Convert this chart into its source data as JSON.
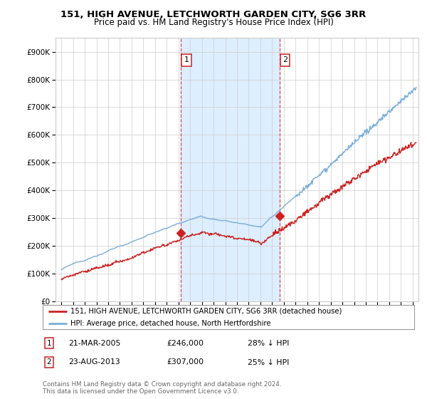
{
  "title": "151, HIGH AVENUE, LETCHWORTH GARDEN CITY, SG6 3RR",
  "subtitle": "Price paid vs. HM Land Registry's House Price Index (HPI)",
  "legend_line1": "151, HIGH AVENUE, LETCHWORTH GARDEN CITY, SG6 3RR (detached house)",
  "legend_line2": "HPI: Average price, detached house, North Hertfordshire",
  "annotation1_label": "1",
  "annotation1_date": "21-MAR-2005",
  "annotation1_price": "£246,000",
  "annotation1_pct": "28% ↓ HPI",
  "annotation2_label": "2",
  "annotation2_date": "23-AUG-2013",
  "annotation2_price": "£307,000",
  "annotation2_pct": "25% ↓ HPI",
  "footer": "Contains HM Land Registry data © Crown copyright and database right 2024.\nThis data is licensed under the Open Government Licence v3.0.",
  "sale1_x": 2005.22,
  "sale1_y": 246000,
  "sale2_x": 2013.64,
  "sale2_y": 307000,
  "hpi_color": "#7aaddb",
  "price_color": "#cc2222",
  "bg_color": "#ffffff",
  "shaded_color": "#ddeeff",
  "grid_color": "#cccccc",
  "title_fontsize": 9.5,
  "subtitle_fontsize": 8.5,
  "ylim": [
    0,
    950000
  ],
  "xlim": [
    1994.5,
    2025.5
  ],
  "yticks": [
    0,
    100000,
    200000,
    300000,
    400000,
    500000,
    600000,
    700000,
    800000,
    900000
  ],
  "ytick_labels": [
    "£0",
    "£100K",
    "£200K",
    "£300K",
    "£400K",
    "£500K",
    "£600K",
    "£700K",
    "£800K",
    "£900K"
  ],
  "xticks": [
    1995,
    1996,
    1997,
    1998,
    1999,
    2000,
    2001,
    2002,
    2003,
    2004,
    2005,
    2006,
    2007,
    2008,
    2009,
    2010,
    2011,
    2012,
    2013,
    2014,
    2015,
    2016,
    2017,
    2018,
    2019,
    2020,
    2021,
    2022,
    2023,
    2024,
    2025
  ]
}
